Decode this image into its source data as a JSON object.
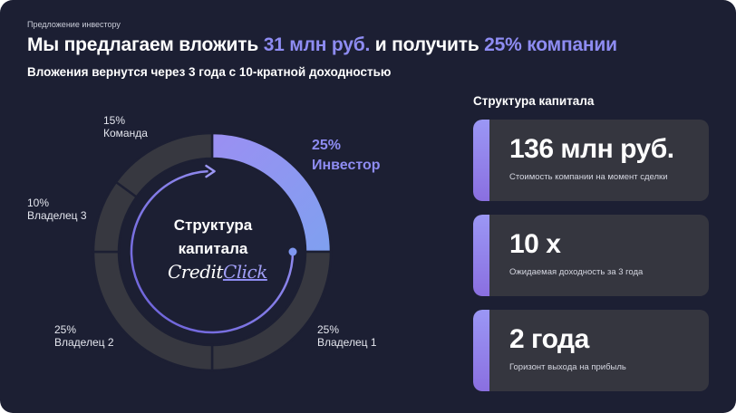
{
  "kicker": "Предложение инвестору",
  "headline": {
    "part1": "Мы предлагаем вложить ",
    "amount": "31 млн руб.",
    "part2": " и получить ",
    "share": "25% компании"
  },
  "subhead": "Вложения вернутся через 3 года с 10-кратной доходностью",
  "chart_data": {
    "type": "pie",
    "title": "",
    "center_label": [
      "Структура",
      "капитала"
    ],
    "series": [
      {
        "name": "Инвестор",
        "value": 25,
        "value_label": "25%",
        "color": "#8e8cf2"
      },
      {
        "name": "Владелец 1",
        "value": 25,
        "value_label": "25%",
        "color": "#373840"
      },
      {
        "name": "Владелец 2",
        "value": 25,
        "value_label": "25%",
        "color": "#373840"
      },
      {
        "name": "Владелец 3",
        "value": 10,
        "value_label": "10%",
        "color": "#373840"
      },
      {
        "name": "Команда",
        "value": 15,
        "value_label": "15%",
        "color": "#373840"
      }
    ]
  },
  "logo": {
    "part1": "Credit",
    "part2": "Click"
  },
  "side": {
    "title": "Структура капитала",
    "cards": [
      {
        "big": "136 млн руб.",
        "small": "Стоимость компании на момент сделки"
      },
      {
        "big": "10 х",
        "small": "Ожидаемая доходность за 3 года"
      },
      {
        "big": "2 года",
        "small": "Горизонт выхода на прибыль"
      }
    ]
  },
  "colors": {
    "background": "#1c1f33",
    "accent": "#8e8cf2",
    "card": "#35363f"
  }
}
